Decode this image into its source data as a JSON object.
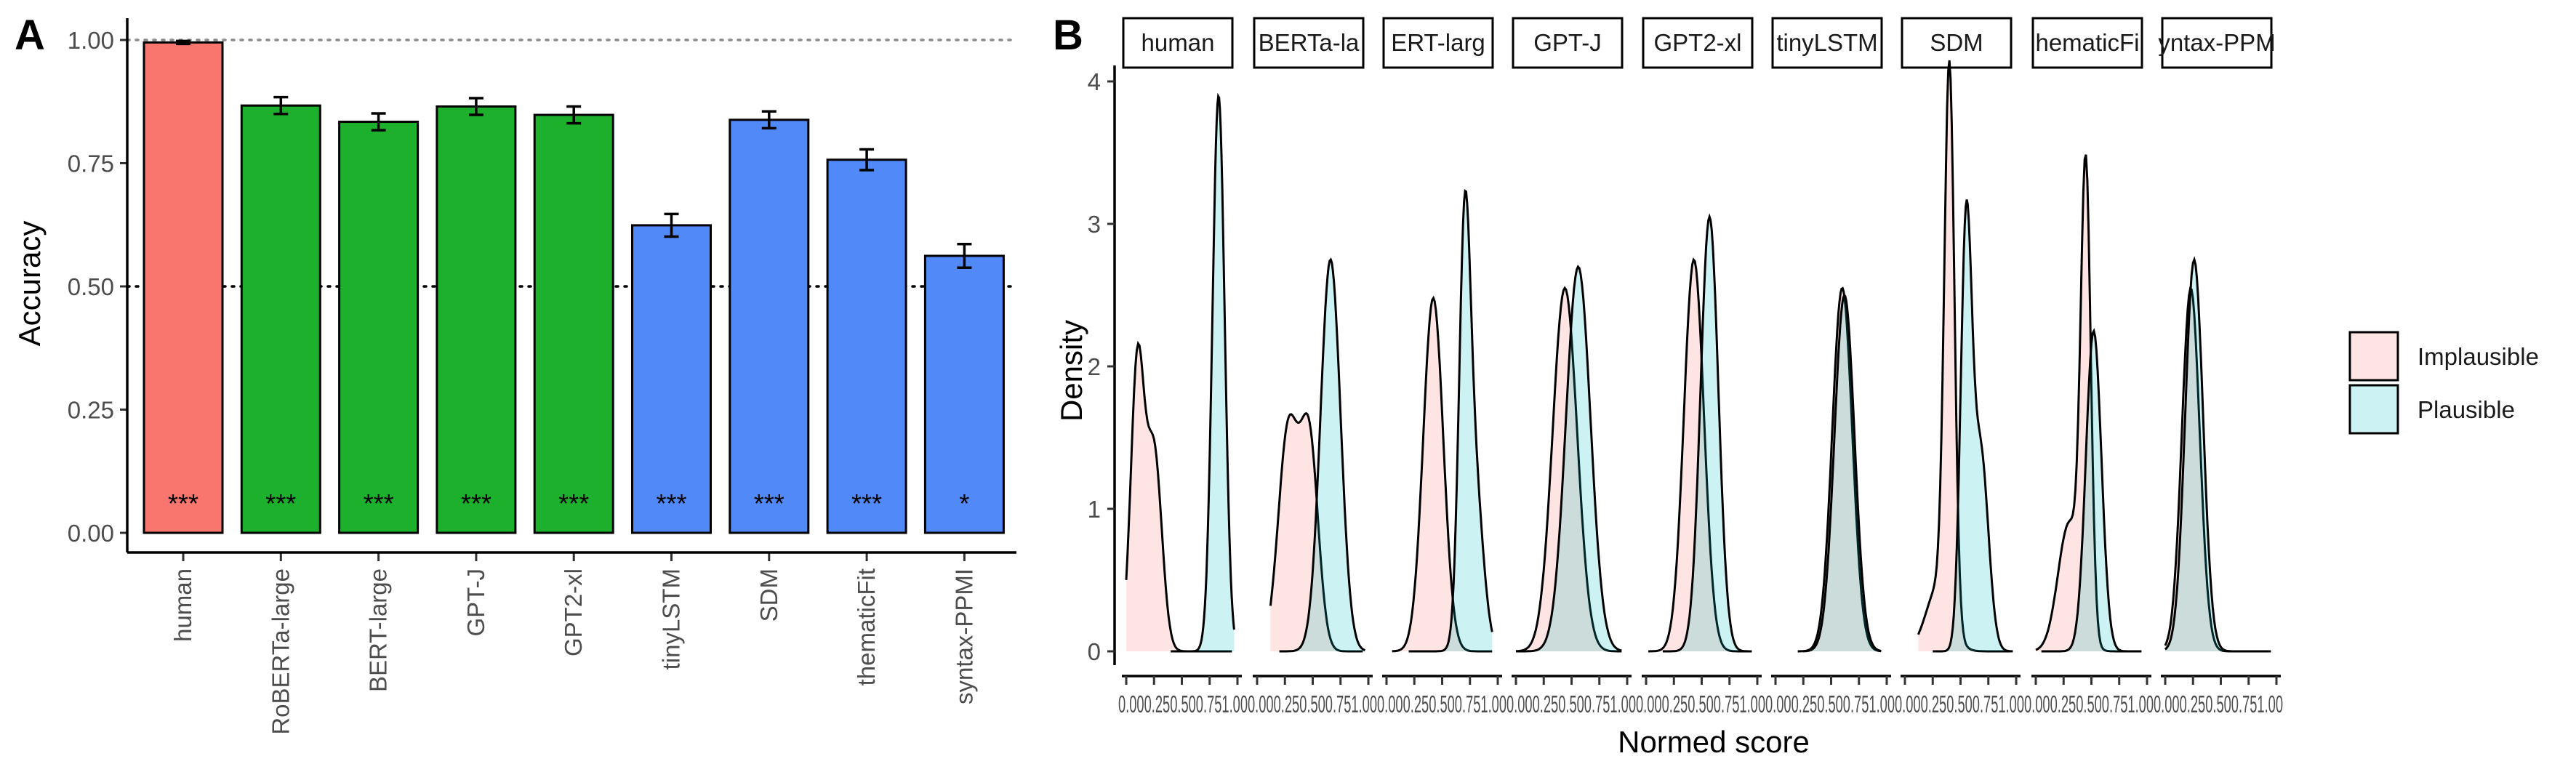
{
  "panel_labels": {
    "a": "A",
    "b": "B"
  },
  "chart_data": [
    {
      "type": "bar",
      "panel": "A",
      "title": "",
      "xlabel": "",
      "ylabel": "Accuracy",
      "ylim": [
        0,
        1.06
      ],
      "yticks": [
        0.0,
        0.25,
        0.5,
        0.75,
        1.0
      ],
      "ytick_labels": [
        "0.00",
        "0.25",
        "0.50",
        "0.75",
        "1.00"
      ],
      "categories": [
        "human",
        "RoBERTa-large",
        "BERT-large",
        "GPT-J",
        "GPT2-xl",
        "tinyLSTM",
        "SDM",
        "thematicFit",
        "syntax-PPMI"
      ],
      "values": [
        0.995,
        0.867,
        0.834,
        0.865,
        0.848,
        0.624,
        0.838,
        0.757,
        0.562
      ],
      "error": [
        0.003,
        0.017,
        0.017,
        0.017,
        0.017,
        0.023,
        0.017,
        0.021,
        0.024
      ],
      "significance": [
        "***",
        "***",
        "***",
        "***",
        "***",
        "***",
        "***",
        "***",
        "*"
      ],
      "bar_colors": [
        "#F8766D",
        "#1DB02D",
        "#1DB02D",
        "#1DB02D",
        "#1DB02D",
        "#5289F8",
        "#5289F8",
        "#5289F8",
        "#5289F8"
      ],
      "reference_lines": [
        {
          "y": 1.0,
          "style": "dotted-gray"
        },
        {
          "y": 0.5,
          "style": "dotted-black"
        }
      ],
      "grid": false
    },
    {
      "type": "area",
      "panel": "B",
      "title": "",
      "xlabel": "Normed score",
      "ylabel": "Density",
      "ylim": [
        0,
        4.2
      ],
      "yticks": [
        0,
        1,
        2,
        3,
        4
      ],
      "ytick_labels": [
        "0",
        "1",
        "2",
        "3",
        "4"
      ],
      "xtick_text": "0.000.250.500.751.00",
      "facets": [
        "human",
        "RoBERTa-large",
        "BERT-large",
        "GPT-J",
        "GPT2-xl",
        "tinyLSTM",
        "SDM",
        "thematicFit",
        "syntax-PPMI"
      ],
      "facet_strip_labels": [
        "human",
        "BERTa-la",
        "ERT-larg",
        "GPT-J",
        "GPT2-xl",
        "tinyLSTM",
        "SDM",
        "hematicFi",
        "yntax-PPM"
      ],
      "series": [
        {
          "name": "Implausible",
          "fill": "#F8766D",
          "params": [
            {
              "comps": [
                [
                  0.1,
                  0.06,
                  2.0
                ],
                [
                  0.25,
                  0.07,
                  1.4
                ]
              ],
              "xmin": 0.0,
              "xmax": 0.95
            },
            {
              "comps": [
                [
                  0.28,
                  0.09,
                  1.55
                ],
                [
                  0.47,
                  0.08,
                  1.45
                ]
              ],
              "xmin": 0.12,
              "xmax": 0.95
            },
            {
              "comps": [
                [
                  0.42,
                  0.09,
                  2.48
                ]
              ],
              "xmin": 0.05,
              "xmax": 0.95
            },
            {
              "comps": [
                [
                  0.44,
                  0.11,
                  2.55
                ]
              ],
              "xmin": 0.0,
              "xmax": 0.95
            },
            {
              "comps": [
                [
                  0.43,
                  0.09,
                  2.75
                ]
              ],
              "xmin": 0.02,
              "xmax": 0.95
            },
            {
              "comps": [
                [
                  0.6,
                  0.09,
                  2.55
                ]
              ],
              "xmin": 0.2,
              "xmax": 0.95
            },
            {
              "comps": [
                [
                  0.4,
                  0.045,
                  3.85
                ],
                [
                  0.3,
                  0.11,
                  0.45
                ]
              ],
              "xmin": 0.12,
              "xmax": 0.95
            },
            {
              "comps": [
                [
                  0.45,
                  0.045,
                  3.2
                ],
                [
                  0.3,
                  0.1,
                  0.9
                ]
              ],
              "xmin": 0.0,
              "xmax": 0.95
            },
            {
              "comps": [
                [
                  0.23,
                  0.08,
                  2.55
                ]
              ],
              "xmin": 0.0,
              "xmax": 0.95
            }
          ]
        },
        {
          "name": "Plausible",
          "fill": "#00BFC4",
          "params": [
            {
              "comps": [
                [
                  0.83,
                  0.055,
                  3.9
                ]
              ],
              "xmin": 0.4,
              "xmax": 0.97
            },
            {
              "comps": [
                [
                  0.66,
                  0.09,
                  2.75
                ]
              ],
              "xmin": 0.2,
              "xmax": 0.97
            },
            {
              "comps": [
                [
                  0.7,
                  0.05,
                  2.4
                ],
                [
                  0.78,
                  0.08,
                  1.3
                ]
              ],
              "xmin": 0.2,
              "xmax": 0.95
            },
            {
              "comps": [
                [
                  0.56,
                  0.11,
                  2.7
                ]
              ],
              "xmin": 0.0,
              "xmax": 0.95
            },
            {
              "comps": [
                [
                  0.57,
                  0.08,
                  3.05
                ]
              ],
              "xmin": 0.15,
              "xmax": 0.95
            },
            {
              "comps": [
                [
                  0.62,
                  0.09,
                  2.5
                ]
              ],
              "xmin": 0.25,
              "xmax": 0.95
            },
            {
              "comps": [
                [
                  0.55,
                  0.05,
                  2.9
                ],
                [
                  0.68,
                  0.07,
                  1.4
                ]
              ],
              "xmin": 0.25,
              "xmax": 0.97
            },
            {
              "comps": [
                [
                  0.52,
                  0.07,
                  2.25
                ]
              ],
              "xmin": 0.05,
              "xmax": 0.95
            },
            {
              "comps": [
                [
                  0.26,
                  0.08,
                  2.75
                ]
              ],
              "xmin": 0.0,
              "xmax": 0.95
            }
          ]
        }
      ],
      "legend": {
        "placement": "right",
        "entries": [
          "Implausible",
          "Plausible"
        ]
      },
      "grid": false
    }
  ]
}
